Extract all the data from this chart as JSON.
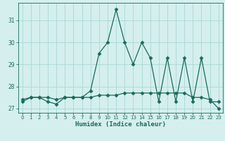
{
  "x": [
    0,
    1,
    2,
    3,
    4,
    5,
    6,
    7,
    8,
    9,
    10,
    11,
    12,
    13,
    14,
    15,
    16,
    17,
    18,
    19,
    20,
    21,
    22,
    23
  ],
  "y_spiky": [
    27.3,
    27.5,
    27.5,
    27.3,
    27.2,
    27.5,
    27.5,
    27.5,
    27.8,
    29.5,
    30.0,
    31.5,
    30.0,
    29.0,
    30.0,
    29.3,
    27.3,
    29.3,
    27.3,
    29.3,
    27.3,
    29.3,
    27.3,
    27.3
  ],
  "y_flat": [
    27.4,
    27.5,
    27.5,
    27.5,
    27.4,
    27.5,
    27.5,
    27.5,
    27.5,
    27.6,
    27.6,
    27.6,
    27.7,
    27.7,
    27.7,
    27.7,
    27.7,
    27.7,
    27.7,
    27.7,
    27.5,
    27.5,
    27.4,
    27.0
  ],
  "xlabel": "Humidex (Indice chaleur)",
  "xlim": [
    -0.5,
    23.5
  ],
  "ylim": [
    26.8,
    31.8
  ],
  "yticks": [
    27,
    28,
    29,
    30,
    31
  ],
  "xticks": [
    0,
    1,
    2,
    3,
    4,
    5,
    6,
    7,
    8,
    9,
    10,
    11,
    12,
    13,
    14,
    15,
    16,
    17,
    18,
    19,
    20,
    21,
    22,
    23
  ],
  "line_color": "#1a6b5a",
  "bg_color": "#d4efed",
  "grid_color": "#a8d8d4",
  "marker": "D",
  "marker_size": 2.5,
  "linewidth": 0.9
}
